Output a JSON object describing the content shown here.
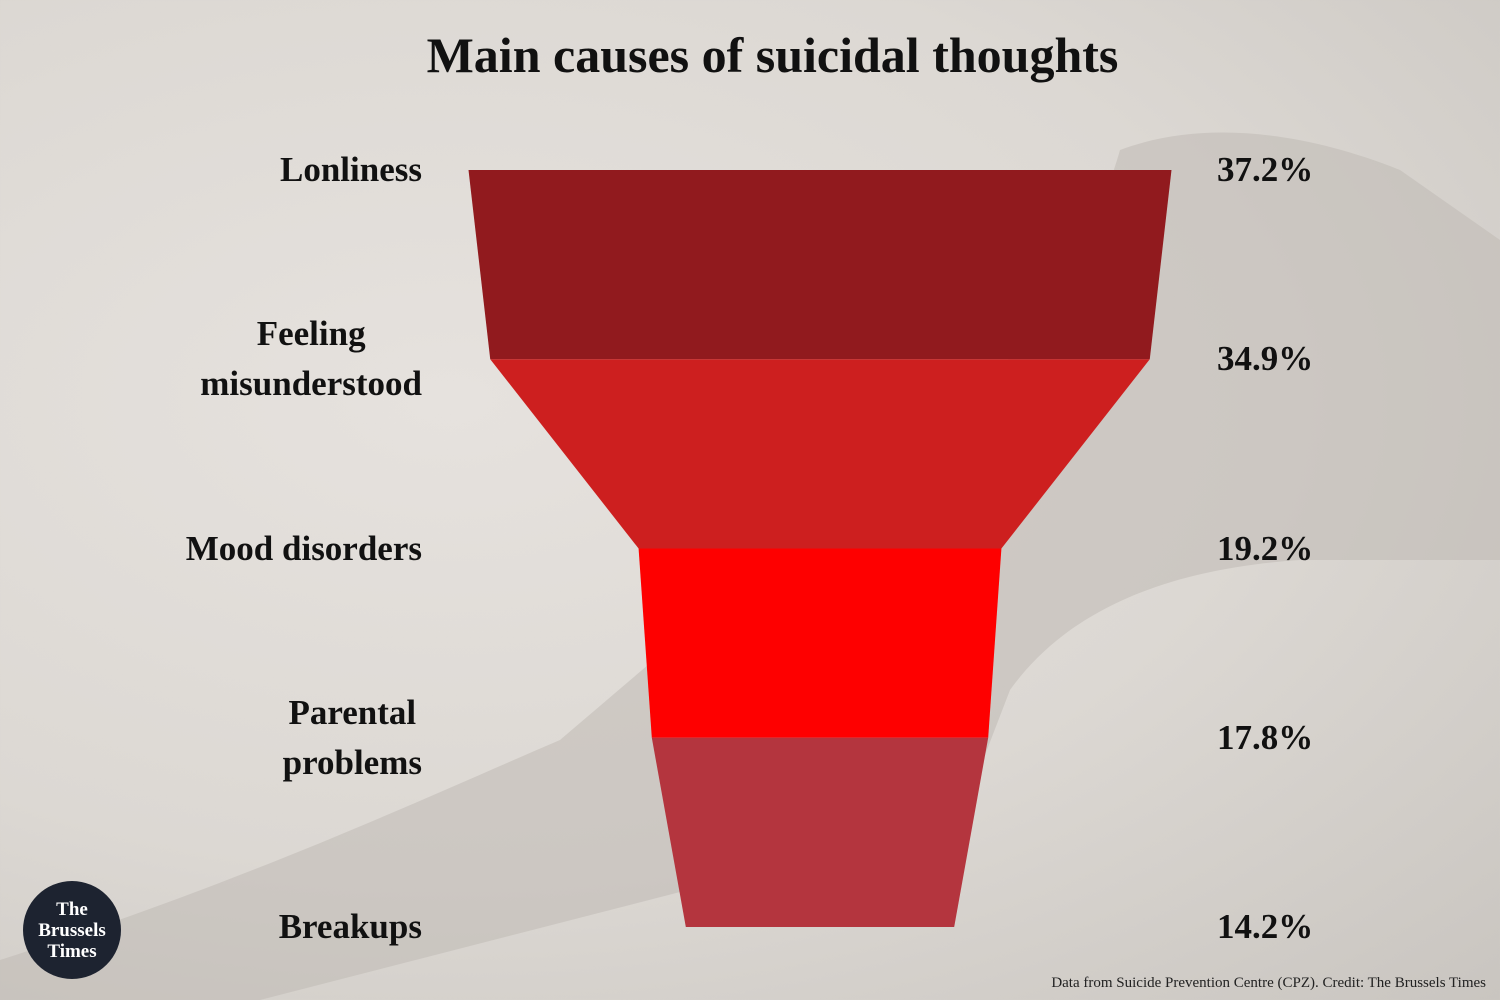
{
  "chart_data": {
    "type": "funnel",
    "title": "Main causes of suicidal thoughts",
    "categories": [
      "Lonliness",
      "Feeling\nmisunderstood",
      "Mood disorders",
      "Parental\nproblems",
      "Breakups"
    ],
    "values": [
      37.2,
      34.9,
      19.2,
      17.8,
      14.2
    ],
    "value_labels": [
      "37.2%",
      "34.9%",
      "19.2%",
      "17.8%",
      "14.2%"
    ],
    "colors": [
      "#911a1e",
      "#cd1f1f",
      "#fe0000",
      "#b4353e"
    ],
    "source": "Data from Suicide Prevention Centre (CPZ). Credit: The Brussels Times",
    "logo": "The\nBrussels\nTimes"
  }
}
